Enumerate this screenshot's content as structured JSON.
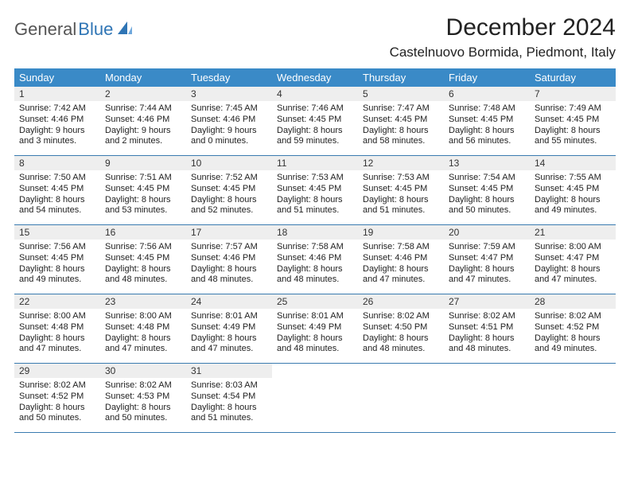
{
  "logo": {
    "a": "General",
    "b": "Blue",
    "sail_color": "#2f75b5"
  },
  "header": {
    "title": "December 2024",
    "location": "Castelnuovo Bormida, Piedmont, Italy",
    "title_fontsize": 30,
    "location_fontsize": 17,
    "title_color": "#222222"
  },
  "calendar": {
    "type": "table",
    "header_bg": "#3a8ac7",
    "header_fg": "#ffffff",
    "daynum_bg": "#eeeeee",
    "rule_color": "#3a7bb0",
    "cell_fontsize": 11,
    "columns": [
      "Sunday",
      "Monday",
      "Tuesday",
      "Wednesday",
      "Thursday",
      "Friday",
      "Saturday"
    ],
    "weeks": [
      [
        {
          "n": "1",
          "sunrise": "7:42 AM",
          "sunset": "4:46 PM",
          "daylight": "9 hours and 3 minutes."
        },
        {
          "n": "2",
          "sunrise": "7:44 AM",
          "sunset": "4:46 PM",
          "daylight": "9 hours and 2 minutes."
        },
        {
          "n": "3",
          "sunrise": "7:45 AM",
          "sunset": "4:46 PM",
          "daylight": "9 hours and 0 minutes."
        },
        {
          "n": "4",
          "sunrise": "7:46 AM",
          "sunset": "4:45 PM",
          "daylight": "8 hours and 59 minutes."
        },
        {
          "n": "5",
          "sunrise": "7:47 AM",
          "sunset": "4:45 PM",
          "daylight": "8 hours and 58 minutes."
        },
        {
          "n": "6",
          "sunrise": "7:48 AM",
          "sunset": "4:45 PM",
          "daylight": "8 hours and 56 minutes."
        },
        {
          "n": "7",
          "sunrise": "7:49 AM",
          "sunset": "4:45 PM",
          "daylight": "8 hours and 55 minutes."
        }
      ],
      [
        {
          "n": "8",
          "sunrise": "7:50 AM",
          "sunset": "4:45 PM",
          "daylight": "8 hours and 54 minutes."
        },
        {
          "n": "9",
          "sunrise": "7:51 AM",
          "sunset": "4:45 PM",
          "daylight": "8 hours and 53 minutes."
        },
        {
          "n": "10",
          "sunrise": "7:52 AM",
          "sunset": "4:45 PM",
          "daylight": "8 hours and 52 minutes."
        },
        {
          "n": "11",
          "sunrise": "7:53 AM",
          "sunset": "4:45 PM",
          "daylight": "8 hours and 51 minutes."
        },
        {
          "n": "12",
          "sunrise": "7:53 AM",
          "sunset": "4:45 PM",
          "daylight": "8 hours and 51 minutes."
        },
        {
          "n": "13",
          "sunrise": "7:54 AM",
          "sunset": "4:45 PM",
          "daylight": "8 hours and 50 minutes."
        },
        {
          "n": "14",
          "sunrise": "7:55 AM",
          "sunset": "4:45 PM",
          "daylight": "8 hours and 49 minutes."
        }
      ],
      [
        {
          "n": "15",
          "sunrise": "7:56 AM",
          "sunset": "4:45 PM",
          "daylight": "8 hours and 49 minutes."
        },
        {
          "n": "16",
          "sunrise": "7:56 AM",
          "sunset": "4:45 PM",
          "daylight": "8 hours and 48 minutes."
        },
        {
          "n": "17",
          "sunrise": "7:57 AM",
          "sunset": "4:46 PM",
          "daylight": "8 hours and 48 minutes."
        },
        {
          "n": "18",
          "sunrise": "7:58 AM",
          "sunset": "4:46 PM",
          "daylight": "8 hours and 48 minutes."
        },
        {
          "n": "19",
          "sunrise": "7:58 AM",
          "sunset": "4:46 PM",
          "daylight": "8 hours and 47 minutes."
        },
        {
          "n": "20",
          "sunrise": "7:59 AM",
          "sunset": "4:47 PM",
          "daylight": "8 hours and 47 minutes."
        },
        {
          "n": "21",
          "sunrise": "8:00 AM",
          "sunset": "4:47 PM",
          "daylight": "8 hours and 47 minutes."
        }
      ],
      [
        {
          "n": "22",
          "sunrise": "8:00 AM",
          "sunset": "4:48 PM",
          "daylight": "8 hours and 47 minutes."
        },
        {
          "n": "23",
          "sunrise": "8:00 AM",
          "sunset": "4:48 PM",
          "daylight": "8 hours and 47 minutes."
        },
        {
          "n": "24",
          "sunrise": "8:01 AM",
          "sunset": "4:49 PM",
          "daylight": "8 hours and 47 minutes."
        },
        {
          "n": "25",
          "sunrise": "8:01 AM",
          "sunset": "4:49 PM",
          "daylight": "8 hours and 48 minutes."
        },
        {
          "n": "26",
          "sunrise": "8:02 AM",
          "sunset": "4:50 PM",
          "daylight": "8 hours and 48 minutes."
        },
        {
          "n": "27",
          "sunrise": "8:02 AM",
          "sunset": "4:51 PM",
          "daylight": "8 hours and 48 minutes."
        },
        {
          "n": "28",
          "sunrise": "8:02 AM",
          "sunset": "4:52 PM",
          "daylight": "8 hours and 49 minutes."
        }
      ],
      [
        {
          "n": "29",
          "sunrise": "8:02 AM",
          "sunset": "4:52 PM",
          "daylight": "8 hours and 50 minutes."
        },
        {
          "n": "30",
          "sunrise": "8:02 AM",
          "sunset": "4:53 PM",
          "daylight": "8 hours and 50 minutes."
        },
        {
          "n": "31",
          "sunrise": "8:03 AM",
          "sunset": "4:54 PM",
          "daylight": "8 hours and 51 minutes."
        },
        {
          "empty": true
        },
        {
          "empty": true
        },
        {
          "empty": true
        },
        {
          "empty": true
        }
      ]
    ]
  }
}
